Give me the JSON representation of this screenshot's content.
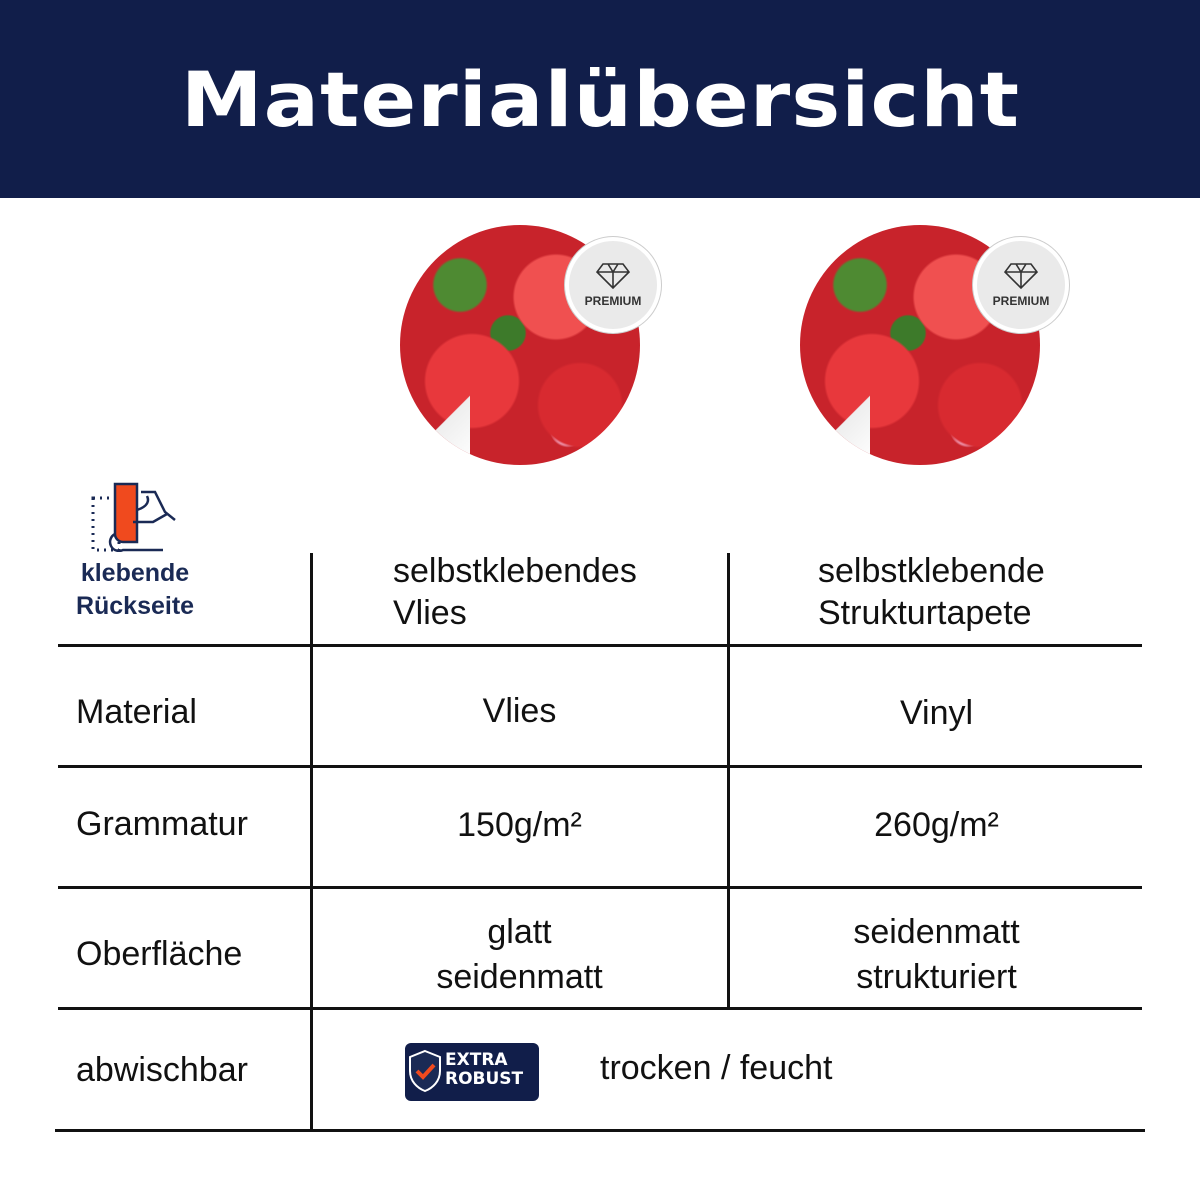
{
  "header": {
    "title": "Materialübersicht"
  },
  "badges": {
    "premium": "PREMIUM",
    "extra_robust": [
      "EXTRA",
      "ROBUST"
    ]
  },
  "adhesive": {
    "line1": "klebende",
    "line2": "Rückseite"
  },
  "columns": [
    {
      "name": [
        "selbstklebendes",
        "Vlies"
      ]
    },
    {
      "name": [
        "selbstklebende",
        "Strukturtapete"
      ]
    }
  ],
  "rows": [
    {
      "label": "Material",
      "values": [
        "Vlies",
        "Vinyl"
      ]
    },
    {
      "label": "Grammatur",
      "values": [
        "150g/m²",
        "260g/m²"
      ]
    },
    {
      "label": "Oberfläche",
      "values": [
        [
          "glatt",
          "seidenmatt"
        ],
        [
          "seidenmatt",
          "strukturiert"
        ]
      ]
    },
    {
      "label": "abwischbar",
      "value": "trocken / feucht"
    }
  ],
  "colors": {
    "header_bg": "#111e4a",
    "accent": "#f04a1e"
  }
}
